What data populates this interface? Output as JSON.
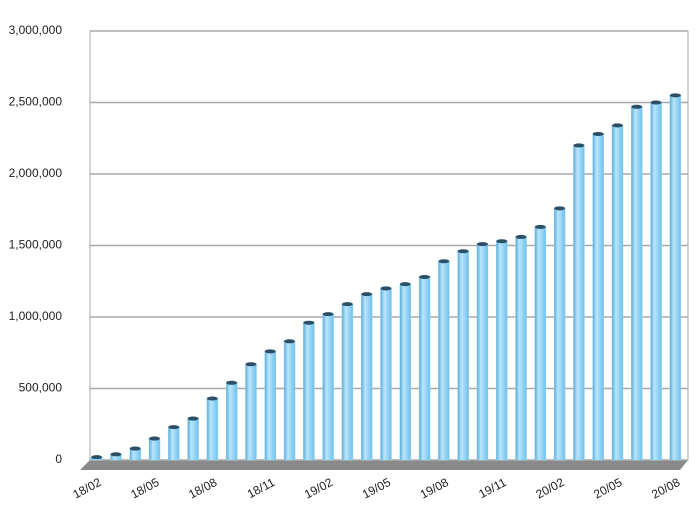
{
  "chart_data": {
    "type": "bar",
    "categories": [
      "18/02",
      null,
      null,
      "18/05",
      null,
      null,
      "18/08",
      null,
      null,
      "18/11",
      null,
      null,
      "19/02",
      null,
      null,
      "19/05",
      null,
      null,
      "19/08",
      null,
      null,
      "19/11",
      null,
      null,
      "20/02",
      null,
      null,
      "20/05",
      null,
      null,
      "20/08"
    ],
    "values": [
      20000,
      40000,
      80000,
      150000,
      230000,
      290000,
      430000,
      540000,
      670000,
      760000,
      830000,
      960000,
      1020000,
      1090000,
      1160000,
      1200000,
      1230000,
      1280000,
      1390000,
      1460000,
      1510000,
      1530000,
      1560000,
      1630000,
      1760000,
      2200000,
      2280000,
      2340000,
      2470000,
      2500000,
      2550000
    ],
    "color": "#8ed4f8",
    "ylim": [
      0,
      3000000
    ],
    "yticks": [
      0,
      {
        "value": 500000,
        "label": "500,000"
      },
      {
        "value": 1000000,
        "label": "1,000,000"
      },
      {
        "value": 1500000,
        "label": "1,500,000"
      },
      {
        "value": 2000000,
        "label": "2,000,000"
      },
      {
        "value": 2500000,
        "label": "2,500,000"
      },
      {
        "value": 3000000,
        "label": "3,000,000"
      }
    ],
    "grid": true
  }
}
